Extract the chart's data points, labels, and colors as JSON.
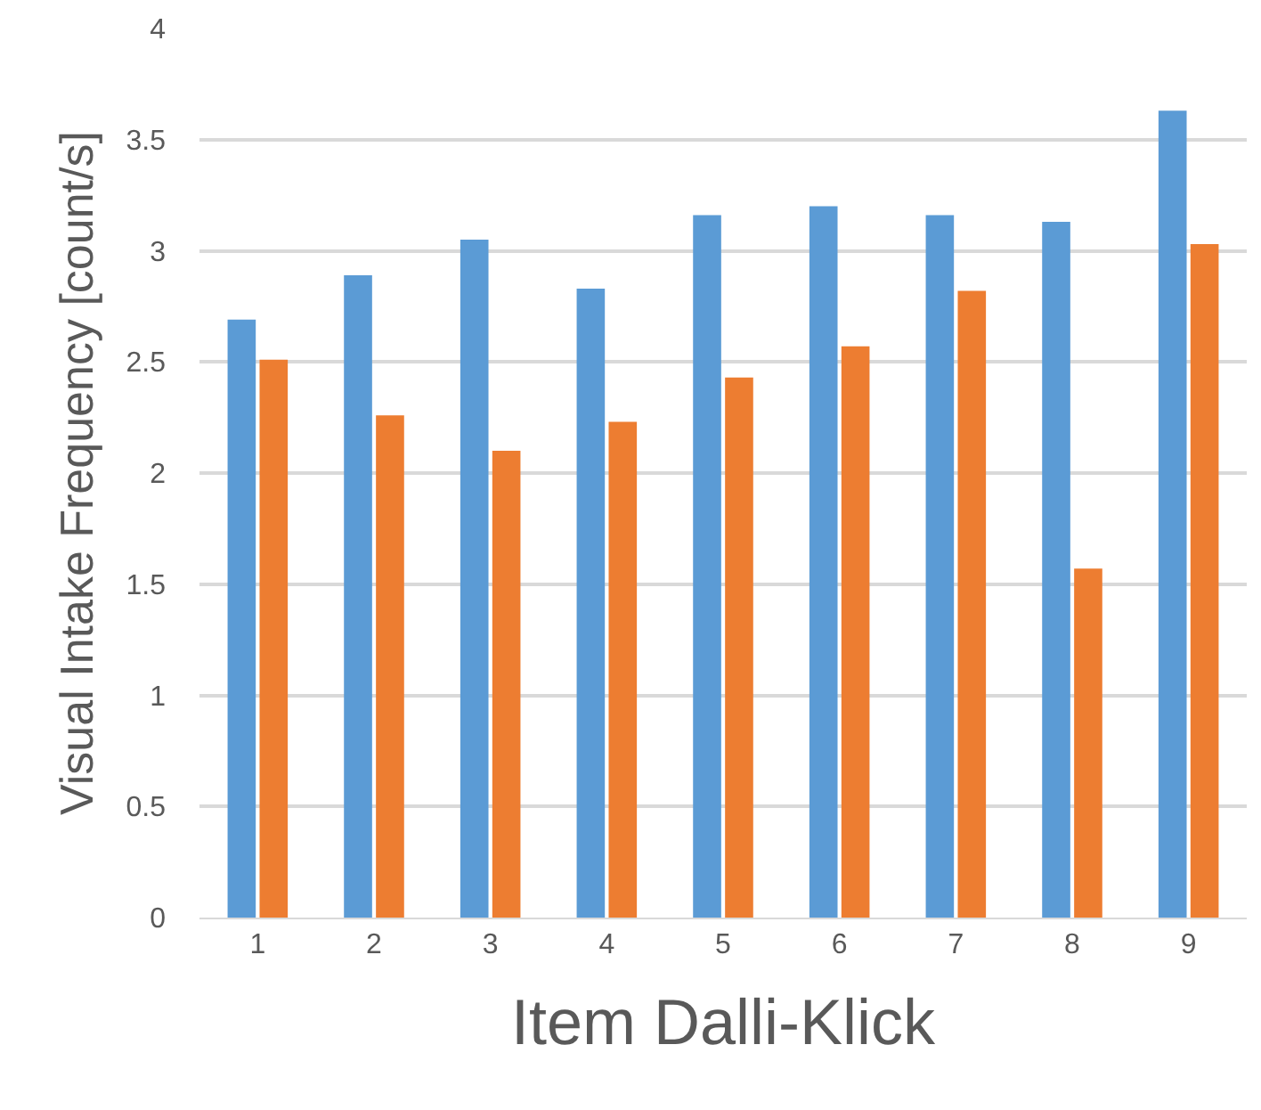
{
  "chart_data": {
    "type": "bar",
    "xlabel": "Item Dalli-Klick",
    "ylabel": "Visual Intake Frequency [count/s]",
    "categories": [
      "1",
      "2",
      "3",
      "4",
      "5",
      "6",
      "7",
      "8",
      "9"
    ],
    "series": [
      {
        "color": "#5b9bd5",
        "values": [
          2.69,
          2.89,
          3.05,
          2.83,
          3.16,
          3.2,
          3.16,
          3.13,
          3.63
        ]
      },
      {
        "color": "#ed7d31",
        "values": [
          2.51,
          2.26,
          2.1,
          2.23,
          2.43,
          2.57,
          2.82,
          1.57,
          3.03
        ]
      }
    ],
    "ylim": [
      0,
      4
    ],
    "yticks": [
      0,
      0.5,
      1,
      1.5,
      2,
      2.5,
      3,
      3.5,
      4
    ],
    "grid": "y"
  }
}
